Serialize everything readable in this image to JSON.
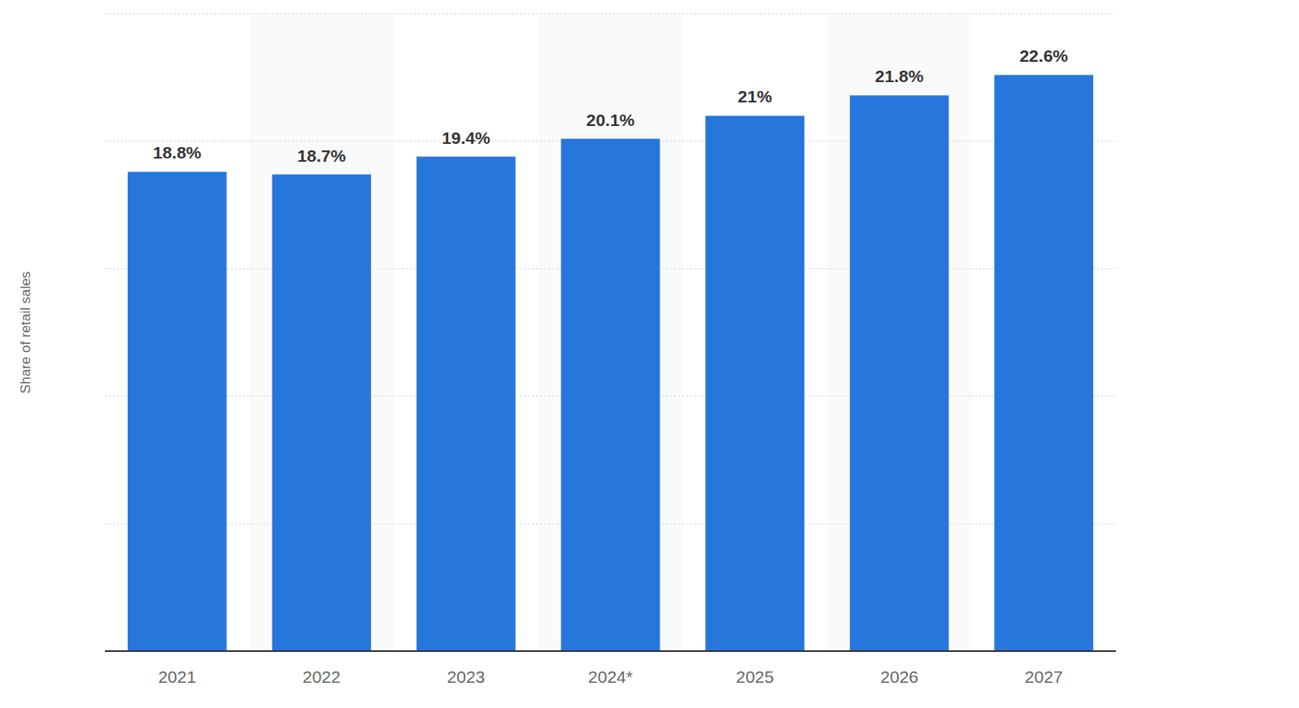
{
  "chart_data": {
    "type": "bar",
    "y_label": "Share of retail sales",
    "categories": [
      "2021",
      "2022",
      "2023",
      "2024*",
      "2025",
      "2026",
      "2027"
    ],
    "values": [
      18.8,
      18.7,
      19.4,
      20.1,
      21,
      21.8,
      22.6
    ],
    "value_labels": [
      "18.8%",
      "18.7%",
      "19.4%",
      "20.1%",
      "21%",
      "21.8%",
      "22.6%"
    ],
    "color": "#2776dc",
    "ylim": [
      0,
      25
    ],
    "yticks": [
      0,
      5,
      10,
      15,
      20,
      25
    ],
    "grid": true,
    "data_labels": true,
    "tick_labels": false
  }
}
